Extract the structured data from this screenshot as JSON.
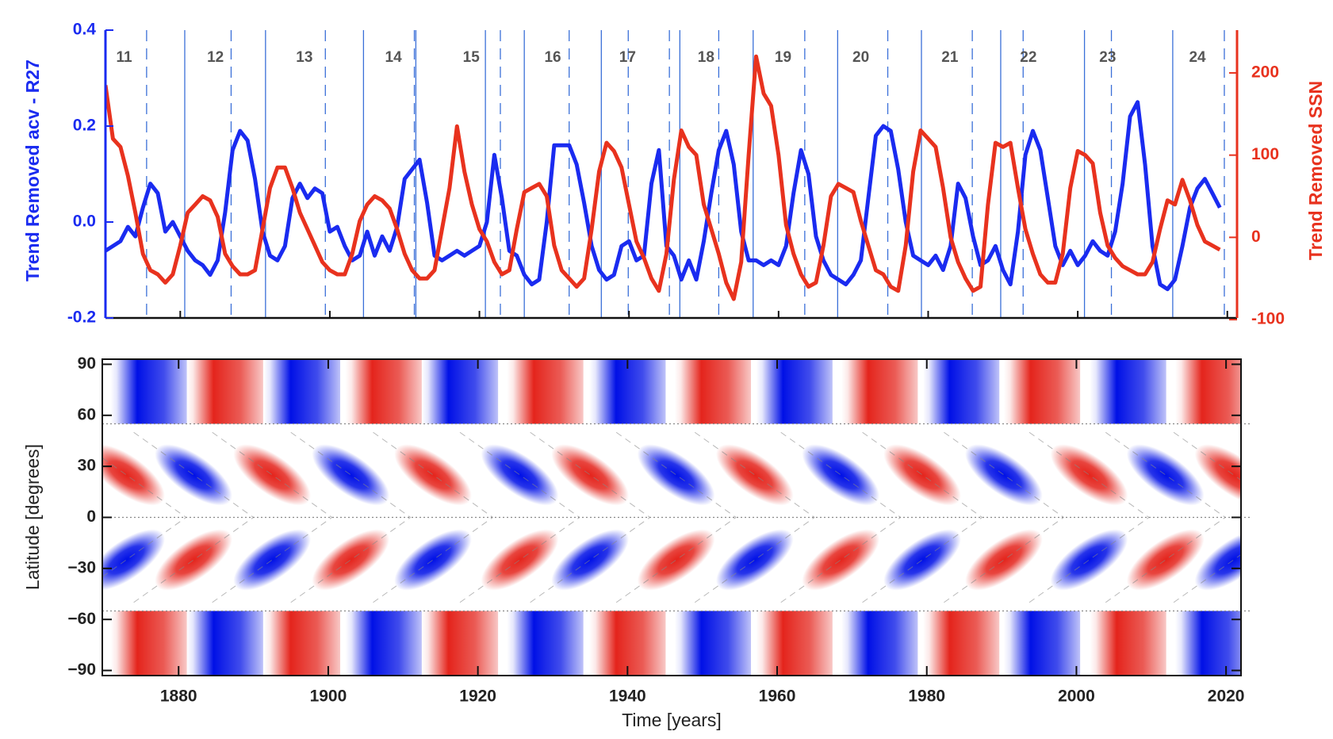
{
  "chart_data": [
    {
      "type": "line",
      "ylabel": "Trend Removed acv - R27",
      "y2label": "Trend Removed SSN",
      "xlim": [
        1870,
        2021.3
      ],
      "xticks": [
        1880,
        1900,
        1920,
        1940,
        1960,
        1980,
        2000,
        2020
      ],
      "ylim": [
        -0.2,
        0.4
      ],
      "yticks": [
        -0.2,
        {
          "value": 0,
          "label": "0.0"
        },
        0.2,
        0.4
      ],
      "y2lim": [
        -98,
        252
      ],
      "y2ticks": [
        -100,
        0,
        100,
        200
      ],
      "solid_lines": [
        1880.6,
        1891.4,
        1904.5,
        1911.5,
        1920.8,
        1926,
        1936.3,
        1946.8,
        1956.6,
        1967.9,
        1979.1,
        1989.7,
        2000.9,
        2012.7
      ],
      "dashed_lines": [
        1875.5,
        1886.8,
        1899.4,
        1911.3,
        1922.8,
        1932,
        1939.9,
        1945.4,
        1952,
        1963.5,
        1974.6,
        1985.9,
        1992.7,
        2004.5,
        2019.6
      ],
      "annotations": [
        {
          "text": "11",
          "x": 1872.5
        },
        {
          "text": "12",
          "x": 1884.7
        },
        {
          "text": "13",
          "x": 1896.6
        },
        {
          "text": "14",
          "x": 1908.5
        },
        {
          "text": "15",
          "x": 1918.9
        },
        {
          "text": "16",
          "x": 1929.8
        },
        {
          "text": "17",
          "x": 1939.8
        },
        {
          "text": "18",
          "x": 1950.3
        },
        {
          "text": "19",
          "x": 1960.6
        },
        {
          "text": "20",
          "x": 1971
        },
        {
          "text": "21",
          "x": 1982.9
        },
        {
          "text": "22",
          "x": 1993.4
        },
        {
          "text": "23",
          "x": 2004
        },
        {
          "text": "24",
          "x": 2016
        }
      ],
      "x": [
        1870,
        1871,
        1872,
        1873,
        1874,
        1875,
        1876,
        1877,
        1878,
        1879,
        1880,
        1881,
        1882,
        1883,
        1884,
        1885,
        1886,
        1887,
        1888,
        1889,
        1890,
        1891,
        1892,
        1893,
        1894,
        1895,
        1896,
        1897,
        1898,
        1899,
        1900,
        1901,
        1902,
        1903,
        1904,
        1905,
        1906,
        1907,
        1908,
        1909,
        1910,
        1911,
        1912,
        1913,
        1914,
        1915,
        1916,
        1917,
        1918,
        1919,
        1920,
        1921,
        1922,
        1923,
        1924,
        1925,
        1926,
        1927,
        1928,
        1929,
        1930,
        1931,
        1932,
        1933,
        1934,
        1935,
        1936,
        1937,
        1938,
        1939,
        1940,
        1941,
        1942,
        1943,
        1944,
        1945,
        1946,
        1947,
        1948,
        1949,
        1950,
        1951,
        1952,
        1953,
        1954,
        1955,
        1956,
        1957,
        1958,
        1959,
        1960,
        1961,
        1962,
        1963,
        1964,
        1965,
        1966,
        1967,
        1968,
        1969,
        1970,
        1971,
        1972,
        1973,
        1974,
        1975,
        1976,
        1977,
        1978,
        1979,
        1980,
        1981,
        1982,
        1983,
        1984,
        1985,
        1986,
        1987,
        1988,
        1989,
        1990,
        1991,
        1992,
        1993,
        1994,
        1995,
        1996,
        1997,
        1998,
        1999,
        2000,
        2001,
        2002,
        2003,
        2004,
        2005,
        2006,
        2007,
        2008,
        2009,
        2010,
        2011,
        2012,
        2013,
        2014,
        2015,
        2016,
        2017,
        2018,
        2019
      ],
      "series": [
        {
          "name": "acv",
          "color": "#1a2bf0",
          "axis": "y",
          "values": [
            -0.06,
            -0.05,
            -0.04,
            -0.01,
            -0.03,
            0.03,
            0.08,
            0.06,
            -0.02,
            0,
            -0.03,
            -0.06,
            -0.08,
            -0.09,
            -0.11,
            -0.08,
            0.02,
            0.15,
            0.19,
            0.17,
            0.09,
            -0.02,
            -0.07,
            -0.08,
            -0.05,
            0.05,
            0.08,
            0.05,
            0.07,
            0.06,
            -0.02,
            -0.01,
            -0.05,
            -0.08,
            -0.07,
            -0.02,
            -0.07,
            -0.03,
            -0.06,
            -0.01,
            0.09,
            0.11,
            0.13,
            0.04,
            -0.07,
            -0.08,
            -0.07,
            -0.06,
            -0.07,
            -0.06,
            -0.05,
            0,
            0.14,
            0.05,
            -0.06,
            -0.07,
            -0.11,
            -0.13,
            -0.12,
            0,
            0.16,
            0.16,
            0.16,
            0.12,
            0.04,
            -0.05,
            -0.1,
            -0.12,
            -0.11,
            -0.05,
            -0.04,
            -0.08,
            -0.07,
            0.08,
            0.15,
            -0.05,
            -0.07,
            -0.12,
            -0.08,
            -0.12,
            -0.04,
            0.06,
            0.15,
            0.19,
            0.12,
            -0.02,
            -0.08,
            -0.08,
            -0.09,
            -0.08,
            -0.09,
            -0.05,
            0.06,
            0.15,
            0.1,
            -0.03,
            -0.08,
            -0.11,
            -0.12,
            -0.13,
            -0.11,
            -0.08,
            0.05,
            0.18,
            0.2,
            0.19,
            0.11,
            0,
            -0.07,
            -0.08,
            -0.09,
            -0.07,
            -0.1,
            -0.05,
            0.08,
            0.05,
            -0.03,
            -0.09,
            -0.08,
            -0.05,
            -0.1,
            -0.13,
            -0.02,
            0.14,
            0.19,
            0.15,
            0.05,
            -0.05,
            -0.09,
            -0.06,
            -0.09,
            -0.07,
            -0.04,
            -0.06,
            -0.07,
            -0.02,
            0.08,
            0.22,
            0.25,
            0.12,
            -0.05,
            -0.13,
            -0.14,
            -0.12,
            -0.05,
            0.03,
            0.07,
            0.09,
            0.06,
            0.03
          ]
        },
        {
          "name": "SSN",
          "color": "#e8321e",
          "axis": "y2",
          "values": [
            185,
            120,
            110,
            75,
            30,
            -20,
            -40,
            -45,
            -55,
            -45,
            -10,
            30,
            40,
            50,
            45,
            25,
            -20,
            -35,
            -45,
            -45,
            -40,
            10,
            60,
            85,
            85,
            60,
            30,
            10,
            -10,
            -30,
            -40,
            -45,
            -45,
            -20,
            20,
            40,
            50,
            45,
            35,
            10,
            -20,
            -40,
            -50,
            -50,
            -40,
            10,
            60,
            135,
            80,
            40,
            10,
            -5,
            -30,
            -45,
            -40,
            10,
            55,
            60,
            65,
            50,
            -10,
            -40,
            -50,
            -60,
            -50,
            10,
            80,
            115,
            105,
            85,
            40,
            -5,
            -25,
            -50,
            -65,
            -20,
            70,
            130,
            110,
            100,
            40,
            10,
            -20,
            -55,
            -75,
            -30,
            100,
            220,
            175,
            160,
            100,
            15,
            -20,
            -45,
            -60,
            -55,
            -10,
            50,
            65,
            60,
            55,
            20,
            -10,
            -40,
            -45,
            -60,
            -65,
            -10,
            80,
            130,
            120,
            110,
            60,
            0,
            -30,
            -50,
            -65,
            -60,
            40,
            115,
            110,
            115,
            60,
            10,
            -20,
            -45,
            -55,
            -55,
            -20,
            60,
            105,
            100,
            90,
            30,
            -10,
            -25,
            -35,
            -40,
            -45,
            -45,
            -30,
            10,
            45,
            40,
            70,
            45,
            15,
            -5,
            -10,
            -15
          ]
        }
      ]
    },
    {
      "type": "heatmap",
      "xlabel": "Time [years]",
      "ylabel": "Latitude [degrees]",
      "xlim": [
        1869.8,
        2022
      ],
      "ylim": [
        -93,
        93
      ],
      "xticks": [
        1880,
        1900,
        1920,
        1940,
        1960,
        1980,
        2000,
        2020
      ],
      "yticks": [
        {
          "value": -90,
          "label": "−90"
        },
        {
          "value": -60,
          "label": "−60"
        },
        {
          "value": -30,
          "label": "−30"
        },
        0,
        30,
        60,
        90
      ],
      "boundaries": [
        55,
        0,
        -55
      ],
      "colors": {
        "positive": "#e4241c",
        "negative": "#0010e6"
      },
      "wing_lat": 25,
      "wing_span": 8,
      "polar": {
        "x": [
          1876,
          1886.2,
          1896.5,
          1907.4,
          1917.6,
          1929,
          1940,
          1951.4,
          1962.3,
          1973.7,
          1984.6,
          1995.4,
          2006.9,
          2018.3
        ],
        "north": [
          -1,
          1,
          -1,
          1,
          -1,
          1,
          -1,
          1,
          -1,
          1,
          -1,
          1,
          -1,
          1
        ],
        "south": [
          1,
          -1,
          1,
          -1,
          1,
          -1,
          1,
          -1,
          1,
          -1,
          1,
          -1,
          1,
          -1
        ]
      },
      "wings": {
        "x": [
          1873,
          1882,
          1892.5,
          1903,
          1914,
          1925.6,
          1935,
          1946.5,
          1957,
          1968.5,
          1979.4,
          1990.3,
          2001.7,
          2011.9,
          2021
        ],
        "north": [
          1,
          -1,
          1,
          -1,
          1,
          -1,
          1,
          -1,
          1,
          -1,
          1,
          -1,
          1,
          -1,
          1
        ],
        "south": [
          -1,
          1,
          -1,
          1,
          -1,
          1,
          -1,
          1,
          -1,
          1,
          -1,
          1,
          -1,
          1,
          -1
        ]
      }
    }
  ]
}
